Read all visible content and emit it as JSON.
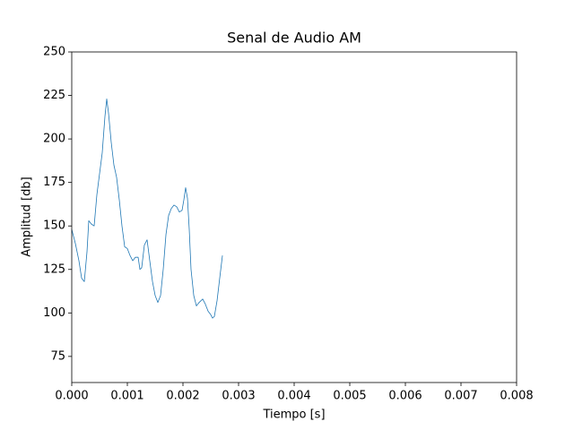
{
  "chart_data": {
    "type": "line",
    "title": "Senal de Audio AM",
    "xlabel": "Tiempo [s]",
    "ylabel": "Amplitud [db]",
    "x": [
      0,
      6.45e-05,
      0.000129,
      0.000177,
      0.000226,
      0.000274,
      0.000306,
      0.000355,
      0.000403,
      0.000452,
      0.0005,
      0.000548,
      0.000597,
      0.000629,
      0.000661,
      0.00071,
      0.000758,
      0.000806,
      0.000855,
      0.000903,
      0.000952,
      0.001,
      0.001048,
      0.001097,
      0.001145,
      0.001194,
      0.001226,
      0.001258,
      0.001306,
      0.001355,
      0.001403,
      0.001452,
      0.0015,
      0.001548,
      0.001597,
      0.001645,
      0.001694,
      0.001742,
      0.00179,
      0.001839,
      0.001887,
      0.001935,
      0.001984,
      0.002016,
      0.002048,
      0.002081,
      0.002113,
      0.002145,
      0.002194,
      0.002242,
      0.00229,
      0.002355,
      0.002403,
      0.002452,
      0.0025,
      0.002532,
      0.002565,
      0.002613,
      0.002661,
      0.00271
    ],
    "series": [
      {
        "color": "#1f77b4",
        "values": [
          148,
          140,
          130,
          120,
          118,
          135,
          153,
          151,
          150,
          168,
          180,
          192,
          213,
          223,
          215,
          198,
          185,
          178,
          165,
          150,
          138,
          137,
          133,
          130,
          132,
          132,
          125,
          126,
          139,
          142,
          130,
          118,
          110,
          106,
          110,
          125,
          145,
          156,
          160,
          162,
          161,
          158,
          159,
          165,
          172,
          166,
          148,
          125,
          110,
          104,
          106,
          108,
          105,
          101,
          99,
          97,
          98,
          107,
          120,
          133
        ]
      }
    ],
    "xlim": [
      0,
      0.008
    ],
    "xticks": [
      {
        "value": 0,
        "label": "0.000"
      },
      {
        "value": 0.001,
        "label": "0.001"
      },
      {
        "value": 0.002,
        "label": "0.002"
      },
      {
        "value": 0.003,
        "label": "0.003"
      },
      {
        "value": 0.004,
        "label": "0.004"
      },
      {
        "value": 0.005,
        "label": "0.005"
      },
      {
        "value": 0.006,
        "label": "0.006"
      },
      {
        "value": 0.007,
        "label": "0.007"
      },
      {
        "value": 0.008,
        "label": "0.008"
      }
    ],
    "ylim": [
      60,
      250
    ],
    "yticks": [
      75,
      100,
      125,
      150,
      175,
      200,
      225,
      250
    ],
    "grid": false
  }
}
